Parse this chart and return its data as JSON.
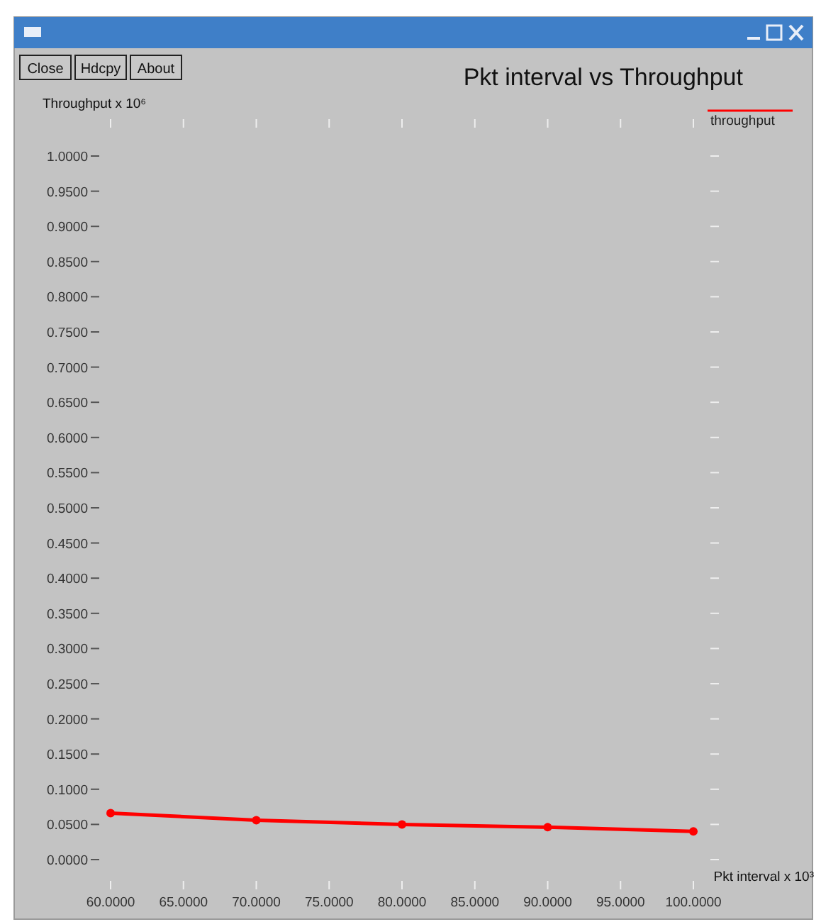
{
  "chart_data": {
    "type": "line",
    "title": "Pkt interval vs Throughput",
    "xlabel": "Pkt interval x 10³",
    "ylabel": "Throughput x 10⁶",
    "annotations": [
      "Close",
      "Hdcpy",
      "About"
    ],
    "x": [
      60,
      70,
      80,
      90,
      100
    ],
    "series": [
      {
        "name": "throughput",
        "color": "#ff0000",
        "values": [
          0.066,
          0.056,
          0.05,
          0.046,
          0.04
        ]
      }
    ],
    "xlim": [
      60,
      100
    ],
    "xticks": [
      {
        "value": 60,
        "label": "60.0000"
      },
      {
        "value": 65,
        "label": "65.0000"
      },
      {
        "value": 70,
        "label": "70.0000"
      },
      {
        "value": 75,
        "label": "75.0000"
      },
      {
        "value": 80,
        "label": "80.0000"
      },
      {
        "value": 85,
        "label": "85.0000"
      },
      {
        "value": 90,
        "label": "90.0000"
      },
      {
        "value": 95,
        "label": "95.0000"
      },
      {
        "value": 100,
        "label": "100.0000"
      }
    ],
    "ylim": [
      0,
      1
    ],
    "yticks": [
      {
        "value": 0,
        "label": "0.0000"
      },
      {
        "value": 0.05,
        "label": "0.0500"
      },
      {
        "value": 0.1,
        "label": "0.1000"
      },
      {
        "value": 0.15,
        "label": "0.1500"
      },
      {
        "value": 0.2,
        "label": "0.2000"
      },
      {
        "value": 0.25,
        "label": "0.2500"
      },
      {
        "value": 0.3,
        "label": "0.3000"
      },
      {
        "value": 0.35,
        "label": "0.3500"
      },
      {
        "value": 0.4,
        "label": "0.4000"
      },
      {
        "value": 0.45,
        "label": "0.4500"
      },
      {
        "value": 0.5,
        "label": "0.5000"
      },
      {
        "value": 0.55,
        "label": "0.5500"
      },
      {
        "value": 0.6,
        "label": "0.6000"
      },
      {
        "value": 0.65,
        "label": "0.6500"
      },
      {
        "value": 0.7,
        "label": "0.7000"
      },
      {
        "value": 0.75,
        "label": "0.7500"
      },
      {
        "value": 0.8,
        "label": "0.8000"
      },
      {
        "value": 0.85,
        "label": "0.8500"
      },
      {
        "value": 0.9,
        "label": "0.9000"
      },
      {
        "value": 0.95,
        "label": "0.9500"
      },
      {
        "value": 1,
        "label": "1.0000"
      }
    ],
    "grid": false,
    "legend": "top right",
    "marker": "circle",
    "line_style": "solid"
  }
}
